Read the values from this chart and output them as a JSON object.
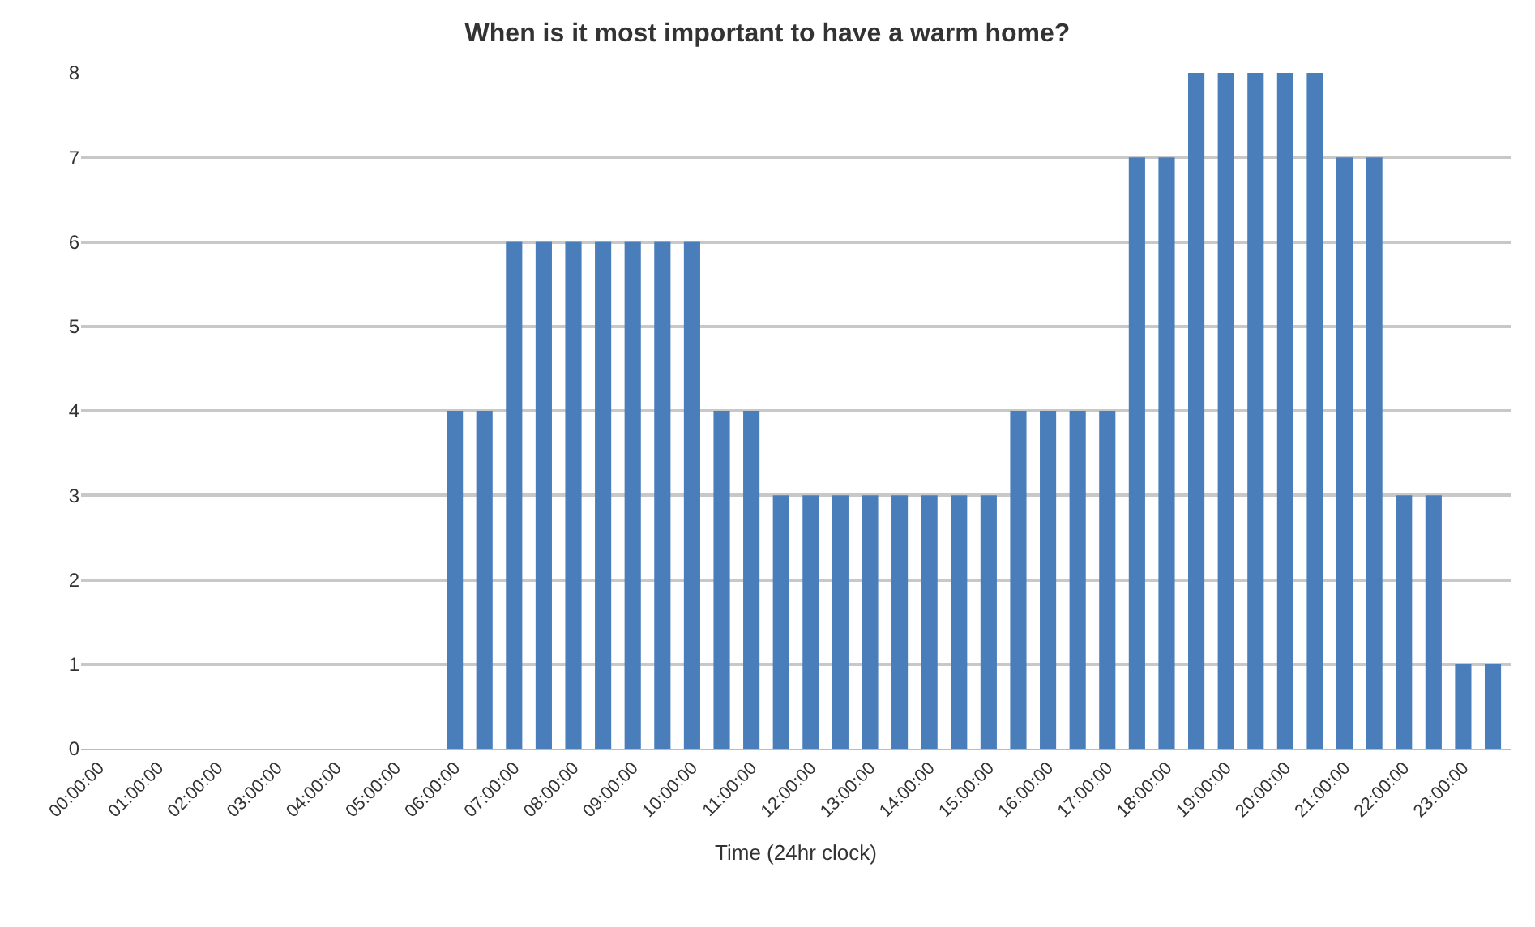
{
  "chart_data": {
    "type": "bar",
    "title": "When is it most important to have a warm home?",
    "xlabel": "Time (24hr clock)",
    "categories": [
      "00:00:00",
      null,
      "01:00:00",
      null,
      "02:00:00",
      null,
      "03:00:00",
      null,
      "04:00:00",
      null,
      "05:00:00",
      null,
      "06:00:00",
      null,
      "07:00:00",
      null,
      "08:00:00",
      null,
      "09:00:00",
      null,
      "10:00:00",
      null,
      "11:00:00",
      null,
      "12:00:00",
      null,
      "13:00:00",
      null,
      "14:00:00",
      null,
      "15:00:00",
      null,
      "16:00:00",
      null,
      "17:00:00",
      null,
      "18:00:00",
      null,
      "19:00:00",
      null,
      "20:00:00",
      null,
      "21:00:00",
      null,
      "22:00:00",
      null,
      "23:00:00",
      null
    ],
    "values": [
      0,
      0,
      0,
      0,
      0,
      0,
      0,
      0,
      0,
      0,
      0,
      0,
      4,
      4,
      6,
      6,
      6,
      6,
      6,
      6,
      6,
      4,
      4,
      3,
      3,
      3,
      3,
      3,
      3,
      3,
      3,
      4,
      4,
      4,
      4,
      7,
      7,
      8,
      8,
      8,
      8,
      8,
      7,
      7,
      3,
      3,
      1,
      1
    ],
    "color": "#4a7ebb",
    "ylim": [
      0,
      8
    ],
    "yticks": [
      0,
      1,
      2,
      3,
      4,
      5,
      6,
      7,
      8
    ],
    "grid": "y",
    "legend": false
  }
}
